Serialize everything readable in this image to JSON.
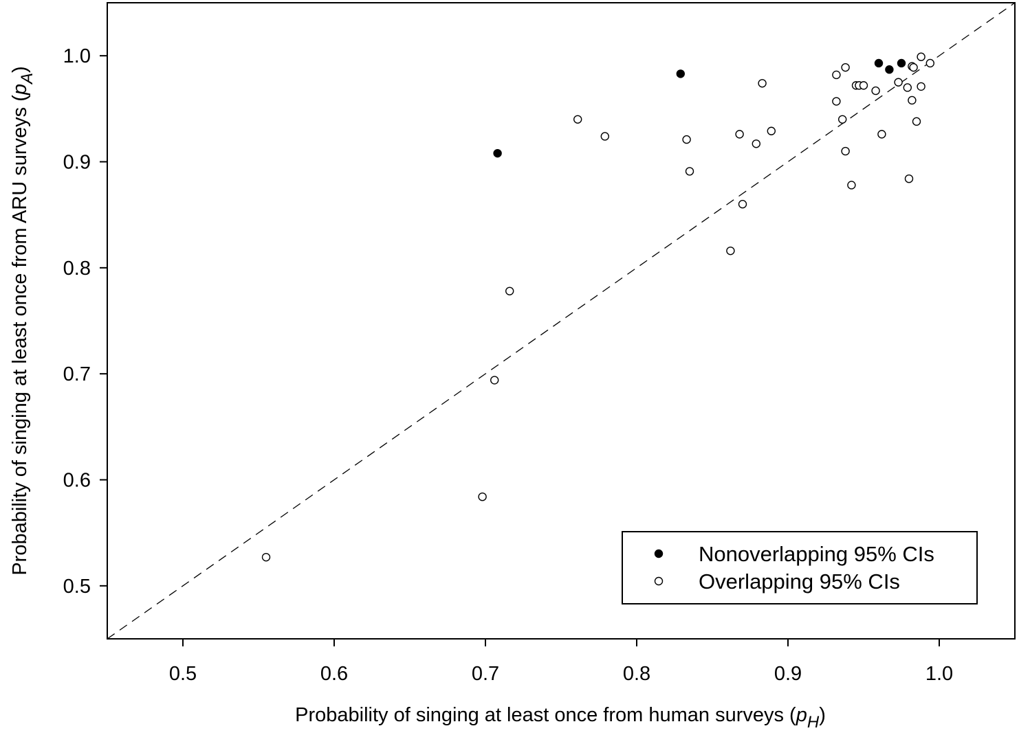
{
  "chart_data": {
    "type": "scatter",
    "xlabel": "Probability of singing at least once from human surveys (",
    "xlabel_symbol": "p",
    "xlabel_subscript": "H",
    "xlabel_close": ")",
    "ylabel": "Probability of singing at least once from ARU surveys (",
    "ylabel_symbol": "p",
    "ylabel_subscript": "A",
    "ylabel_close": ")",
    "xlim": [
      0.45,
      1.05
    ],
    "ylim": [
      0.45,
      1.05
    ],
    "x_ticks": [
      0.5,
      0.6,
      0.7,
      0.8,
      0.9,
      1.0
    ],
    "x_tick_labels": [
      "0.5",
      "0.6",
      "0.7",
      "0.8",
      "0.9",
      "1.0"
    ],
    "y_ticks": [
      0.5,
      0.6,
      0.7,
      0.8,
      0.9,
      1.0
    ],
    "y_tick_labels": [
      "0.5",
      "0.6",
      "0.7",
      "0.8",
      "0.9",
      "1.0"
    ],
    "grid": false,
    "reference_line": {
      "style": "dashed",
      "slope": 1,
      "intercept": 0
    },
    "legend_position": "bottom-right",
    "series": [
      {
        "name": "Nonoverlapping 95% CIs",
        "marker": "filled-circle",
        "color": "#000000",
        "points": [
          [
            0.708,
            0.908
          ],
          [
            0.829,
            0.983
          ],
          [
            0.96,
            0.993
          ],
          [
            0.967,
            0.987
          ],
          [
            0.975,
            0.993
          ]
        ]
      },
      {
        "name": "Overlapping 95% CIs",
        "marker": "open-circle",
        "color": "#000000",
        "points": [
          [
            0.555,
            0.527
          ],
          [
            0.698,
            0.584
          ],
          [
            0.706,
            0.694
          ],
          [
            0.716,
            0.778
          ],
          [
            0.761,
            0.94
          ],
          [
            0.779,
            0.924
          ],
          [
            0.833,
            0.921
          ],
          [
            0.835,
            0.891
          ],
          [
            0.862,
            0.816
          ],
          [
            0.868,
            0.926
          ],
          [
            0.87,
            0.86
          ],
          [
            0.879,
            0.917
          ],
          [
            0.883,
            0.974
          ],
          [
            0.889,
            0.929
          ],
          [
            0.932,
            0.982
          ],
          [
            0.932,
            0.957
          ],
          [
            0.936,
            0.94
          ],
          [
            0.938,
            0.989
          ],
          [
            0.938,
            0.91
          ],
          [
            0.942,
            0.878
          ],
          [
            0.945,
            0.972
          ],
          [
            0.947,
            0.972
          ],
          [
            0.95,
            0.972
          ],
          [
            0.958,
            0.967
          ],
          [
            0.962,
            0.926
          ],
          [
            0.973,
            0.975
          ],
          [
            0.979,
            0.97
          ],
          [
            0.98,
            0.884
          ],
          [
            0.982,
            0.99
          ],
          [
            0.982,
            0.958
          ],
          [
            0.983,
            0.989
          ],
          [
            0.985,
            0.938
          ],
          [
            0.988,
            0.999
          ],
          [
            0.988,
            0.971
          ],
          [
            0.994,
            0.993
          ]
        ]
      }
    ]
  }
}
